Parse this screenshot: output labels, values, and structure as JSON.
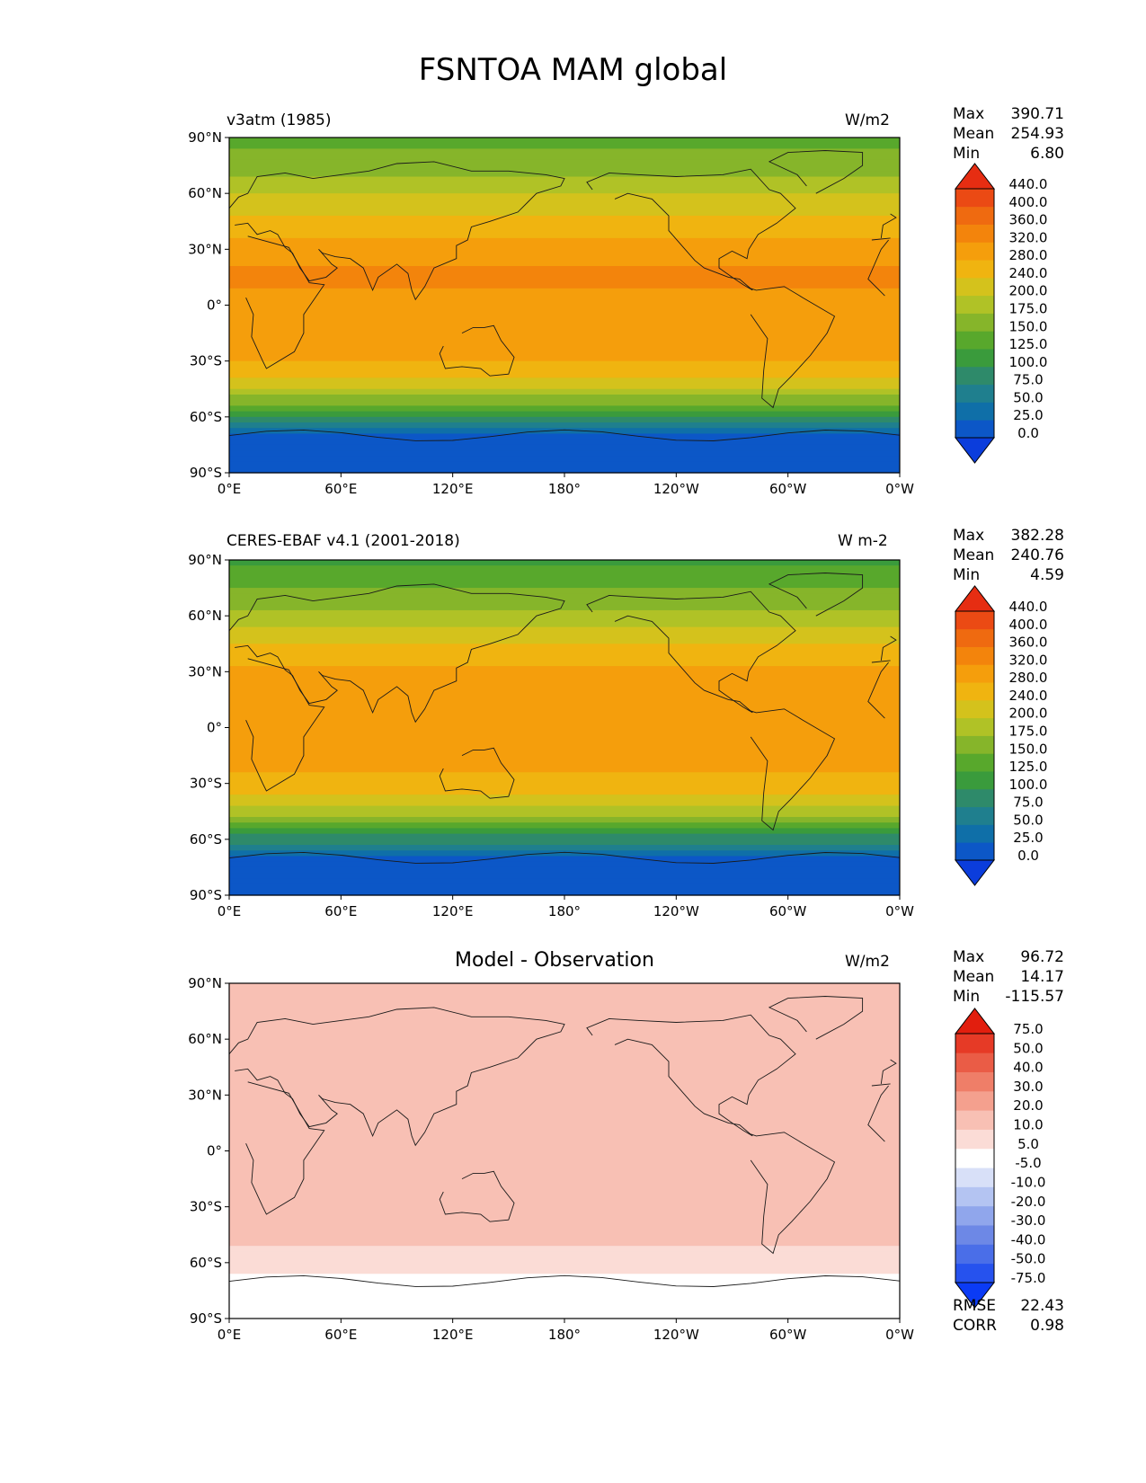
{
  "figure": {
    "title": "FSNTOA MAM global"
  },
  "panels": [
    {
      "left_label": "v3atm (1985)",
      "center_title": "",
      "units": "W/m2",
      "stats": [
        {
          "label": "Max",
          "value": "390.71"
        },
        {
          "label": "Mean",
          "value": "254.93"
        },
        {
          "label": "Min",
          "value": "6.80"
        }
      ],
      "extra_stats": [],
      "colorbar": {
        "levels": [
          "0.0",
          "25.0",
          "50.0",
          "75.0",
          "100.0",
          "125.0",
          "150.0",
          "175.0",
          "200.0",
          "240.0",
          "280.0",
          "320.0",
          "360.0",
          "400.0",
          "440.0"
        ],
        "colors": [
          "#0b3ddc",
          "#0c57c7",
          "#0f6fa8",
          "#1f7f8e",
          "#2e8a6a",
          "#3a9b3c",
          "#58a82c",
          "#86b52a",
          "#b0c226",
          "#d4c21c",
          "#f0b410",
          "#f59e0c",
          "#f3840c",
          "#ef6a10",
          "#eb4a14",
          "#e62d12"
        ]
      }
    },
    {
      "left_label": "CERES-EBAF v4.1 (2001-2018)",
      "center_title": "",
      "units": "W m-2",
      "stats": [
        {
          "label": "Max",
          "value": "382.28"
        },
        {
          "label": "Mean",
          "value": "240.76"
        },
        {
          "label": "Min",
          "value": "4.59"
        }
      ],
      "extra_stats": [],
      "colorbar": {
        "levels": [
          "0.0",
          "25.0",
          "50.0",
          "75.0",
          "100.0",
          "125.0",
          "150.0",
          "175.0",
          "200.0",
          "240.0",
          "280.0",
          "320.0",
          "360.0",
          "400.0",
          "440.0"
        ],
        "colors": [
          "#0b3ddc",
          "#0c57c7",
          "#0f6fa8",
          "#1f7f8e",
          "#2e8a6a",
          "#3a9b3c",
          "#58a82c",
          "#86b52a",
          "#b0c226",
          "#d4c21c",
          "#f0b410",
          "#f59e0c",
          "#f3840c",
          "#ef6a10",
          "#eb4a14",
          "#e62d12"
        ]
      }
    },
    {
      "left_label": "",
      "center_title": "Model - Observation",
      "units": "W/m2",
      "stats": [
        {
          "label": "Max",
          "value": "96.72"
        },
        {
          "label": "Mean",
          "value": "14.17"
        },
        {
          "label": "Min",
          "value": "-115.57"
        }
      ],
      "extra_stats": [
        {
          "label": "RMSE",
          "value": "22.43"
        },
        {
          "label": "CORR",
          "value": "0.98"
        }
      ],
      "colorbar": {
        "levels": [
          "-75.0",
          "-50.0",
          "-40.0",
          "-30.0",
          "-20.0",
          "-10.0",
          "-5.0",
          "5.0",
          "10.0",
          "20.0",
          "30.0",
          "40.0",
          "50.0",
          "75.0"
        ],
        "colors": [
          "#0b3bf5",
          "#2652ee",
          "#4a6ee8",
          "#6d88e6",
          "#90a6ec",
          "#b4c4f2",
          "#d8e0f8",
          "#ffffff",
          "#fbdcd6",
          "#f8c0b4",
          "#f4a08e",
          "#ef7e68",
          "#ea5c46",
          "#e63a26",
          "#e21e0e"
        ]
      }
    }
  ],
  "axes": {
    "x_ticks": [
      "0°E",
      "60°E",
      "120°E",
      "180°",
      "120°W",
      "60°W",
      "0°W"
    ],
    "y_ticks": [
      "90°N",
      "60°N",
      "30°N",
      "0°",
      "30°S",
      "60°S",
      "90°S"
    ]
  },
  "chart_data": [
    {
      "type": "heatmap",
      "title": "v3atm (1985)",
      "units": "W/m2",
      "xlim": [
        0,
        360
      ],
      "ylim": [
        -90,
        90
      ],
      "x_ticks": [
        "0°E",
        "60°E",
        "120°E",
        "180°",
        "120°W",
        "60°W",
        "0°W"
      ],
      "y_ticks": [
        "90°N",
        "60°N",
        "30°N",
        "0°",
        "30°S",
        "60°S",
        "90°S"
      ],
      "color_levels": [
        0,
        25,
        50,
        75,
        100,
        125,
        150,
        175,
        200,
        240,
        280,
        320,
        360,
        400,
        440
      ],
      "max": 390.71,
      "mean": 254.93,
      "min": 6.8,
      "zonal_profile": {
        "lat": [
          90,
          80,
          70,
          60,
          50,
          40,
          30,
          20,
          10,
          0,
          -10,
          -20,
          -30,
          -40,
          -50,
          -60,
          -65,
          -70,
          -80,
          -90
        ],
        "value": [
          130,
          160,
          175,
          200,
          230,
          270,
          300,
          325,
          320,
          300,
          310,
          305,
          280,
          230,
          170,
          90,
          60,
          25,
          15,
          10
        ]
      }
    },
    {
      "type": "heatmap",
      "title": "CERES-EBAF v4.1 (2001-2018)",
      "units": "W m-2",
      "xlim": [
        0,
        360
      ],
      "ylim": [
        -90,
        90
      ],
      "x_ticks": [
        "0°E",
        "60°E",
        "120°E",
        "180°",
        "120°W",
        "60°W",
        "0°W"
      ],
      "y_ticks": [
        "90°N",
        "60°N",
        "30°N",
        "0°",
        "30°S",
        "60°S",
        "90°S"
      ],
      "color_levels": [
        0,
        25,
        50,
        75,
        100,
        125,
        150,
        175,
        200,
        240,
        280,
        320,
        360,
        400,
        440
      ],
      "max": 382.28,
      "mean": 240.76,
      "min": 4.59,
      "zonal_profile": {
        "lat": [
          90,
          80,
          70,
          60,
          50,
          40,
          30,
          20,
          10,
          0,
          -10,
          -20,
          -30,
          -40,
          -50,
          -60,
          -65,
          -70,
          -80,
          -90
        ],
        "value": [
          115,
          140,
          160,
          185,
          215,
          255,
          290,
          315,
          305,
          285,
          295,
          290,
          265,
          215,
          160,
          85,
          55,
          22,
          12,
          8
        ]
      }
    },
    {
      "type": "heatmap",
      "title": "Model - Observation",
      "units": "W/m2",
      "xlim": [
        0,
        360
      ],
      "ylim": [
        -90,
        90
      ],
      "x_ticks": [
        "0°E",
        "60°E",
        "120°E",
        "180°",
        "120°W",
        "60°W",
        "0°W"
      ],
      "y_ticks": [
        "90°N",
        "60°N",
        "30°N",
        "0°",
        "30°S",
        "60°S",
        "90°S"
      ],
      "color_levels": [
        -75,
        -50,
        -40,
        -30,
        -20,
        -10,
        -5,
        5,
        10,
        20,
        30,
        40,
        50,
        75
      ],
      "max": 96.72,
      "mean": 14.17,
      "min": -115.57,
      "rmse": 22.43,
      "corr": 0.98,
      "zonal_profile": {
        "lat": [
          90,
          80,
          70,
          60,
          50,
          40,
          30,
          20,
          10,
          0,
          -10,
          -20,
          -30,
          -40,
          -50,
          -60,
          -65,
          -70,
          -80,
          -90
        ],
        "value": [
          15,
          20,
          15,
          15,
          15,
          15,
          10,
          10,
          15,
          15,
          15,
          15,
          15,
          15,
          10,
          5,
          5,
          3,
          3,
          2
        ]
      }
    }
  ]
}
